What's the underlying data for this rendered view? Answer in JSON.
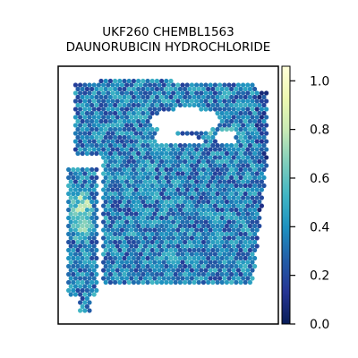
{
  "chart_data": {
    "type": "heatmap",
    "title_line1": "UKF260 CHEMBL1563",
    "title_line2": "DAUNORUBICIN HYDROCHLORIDE",
    "colormap": "YlGnBu",
    "colormap_stops": [
      "#081d58",
      "#253494",
      "#225ea8",
      "#1d91c0",
      "#41b6c4",
      "#7fcdbb",
      "#c7e9b4",
      "#edf8b1",
      "#ffffd9"
    ],
    "colorbar": {
      "vmin": 0.0,
      "vmax": 1.06,
      "ticks": [
        {
          "value": 0.0,
          "label": "0.0"
        },
        {
          "value": 0.2,
          "label": "0.2"
        },
        {
          "value": 0.4,
          "label": "0.4"
        },
        {
          "value": 0.6,
          "label": "0.6"
        },
        {
          "value": 0.8,
          "label": "0.8"
        },
        {
          "value": 1.0,
          "label": "1.0"
        }
      ]
    },
    "typical_value": 0.35,
    "high_value_region_value": 0.7,
    "axes_visible": false,
    "grid": false
  }
}
